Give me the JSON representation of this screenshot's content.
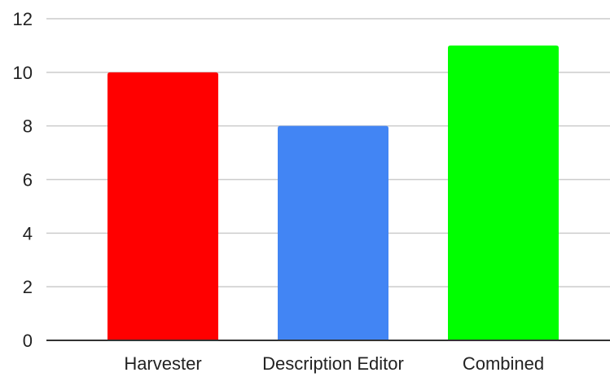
{
  "chart_data": {
    "type": "bar",
    "title": "",
    "xlabel": "",
    "ylabel": "",
    "categories": [
      "Harvester",
      "Description Editor",
      "Combined"
    ],
    "values": [
      10,
      8,
      11
    ],
    "bar_colors": [
      "#ff0000",
      "#4285f4",
      "#00ff00"
    ],
    "ylim": [
      0,
      12
    ],
    "yticks": [
      0,
      2,
      4,
      6,
      8,
      10,
      12
    ],
    "grid": true,
    "gridline_color": "#cccccc",
    "axis_color": "#333333",
    "legend": "none"
  }
}
